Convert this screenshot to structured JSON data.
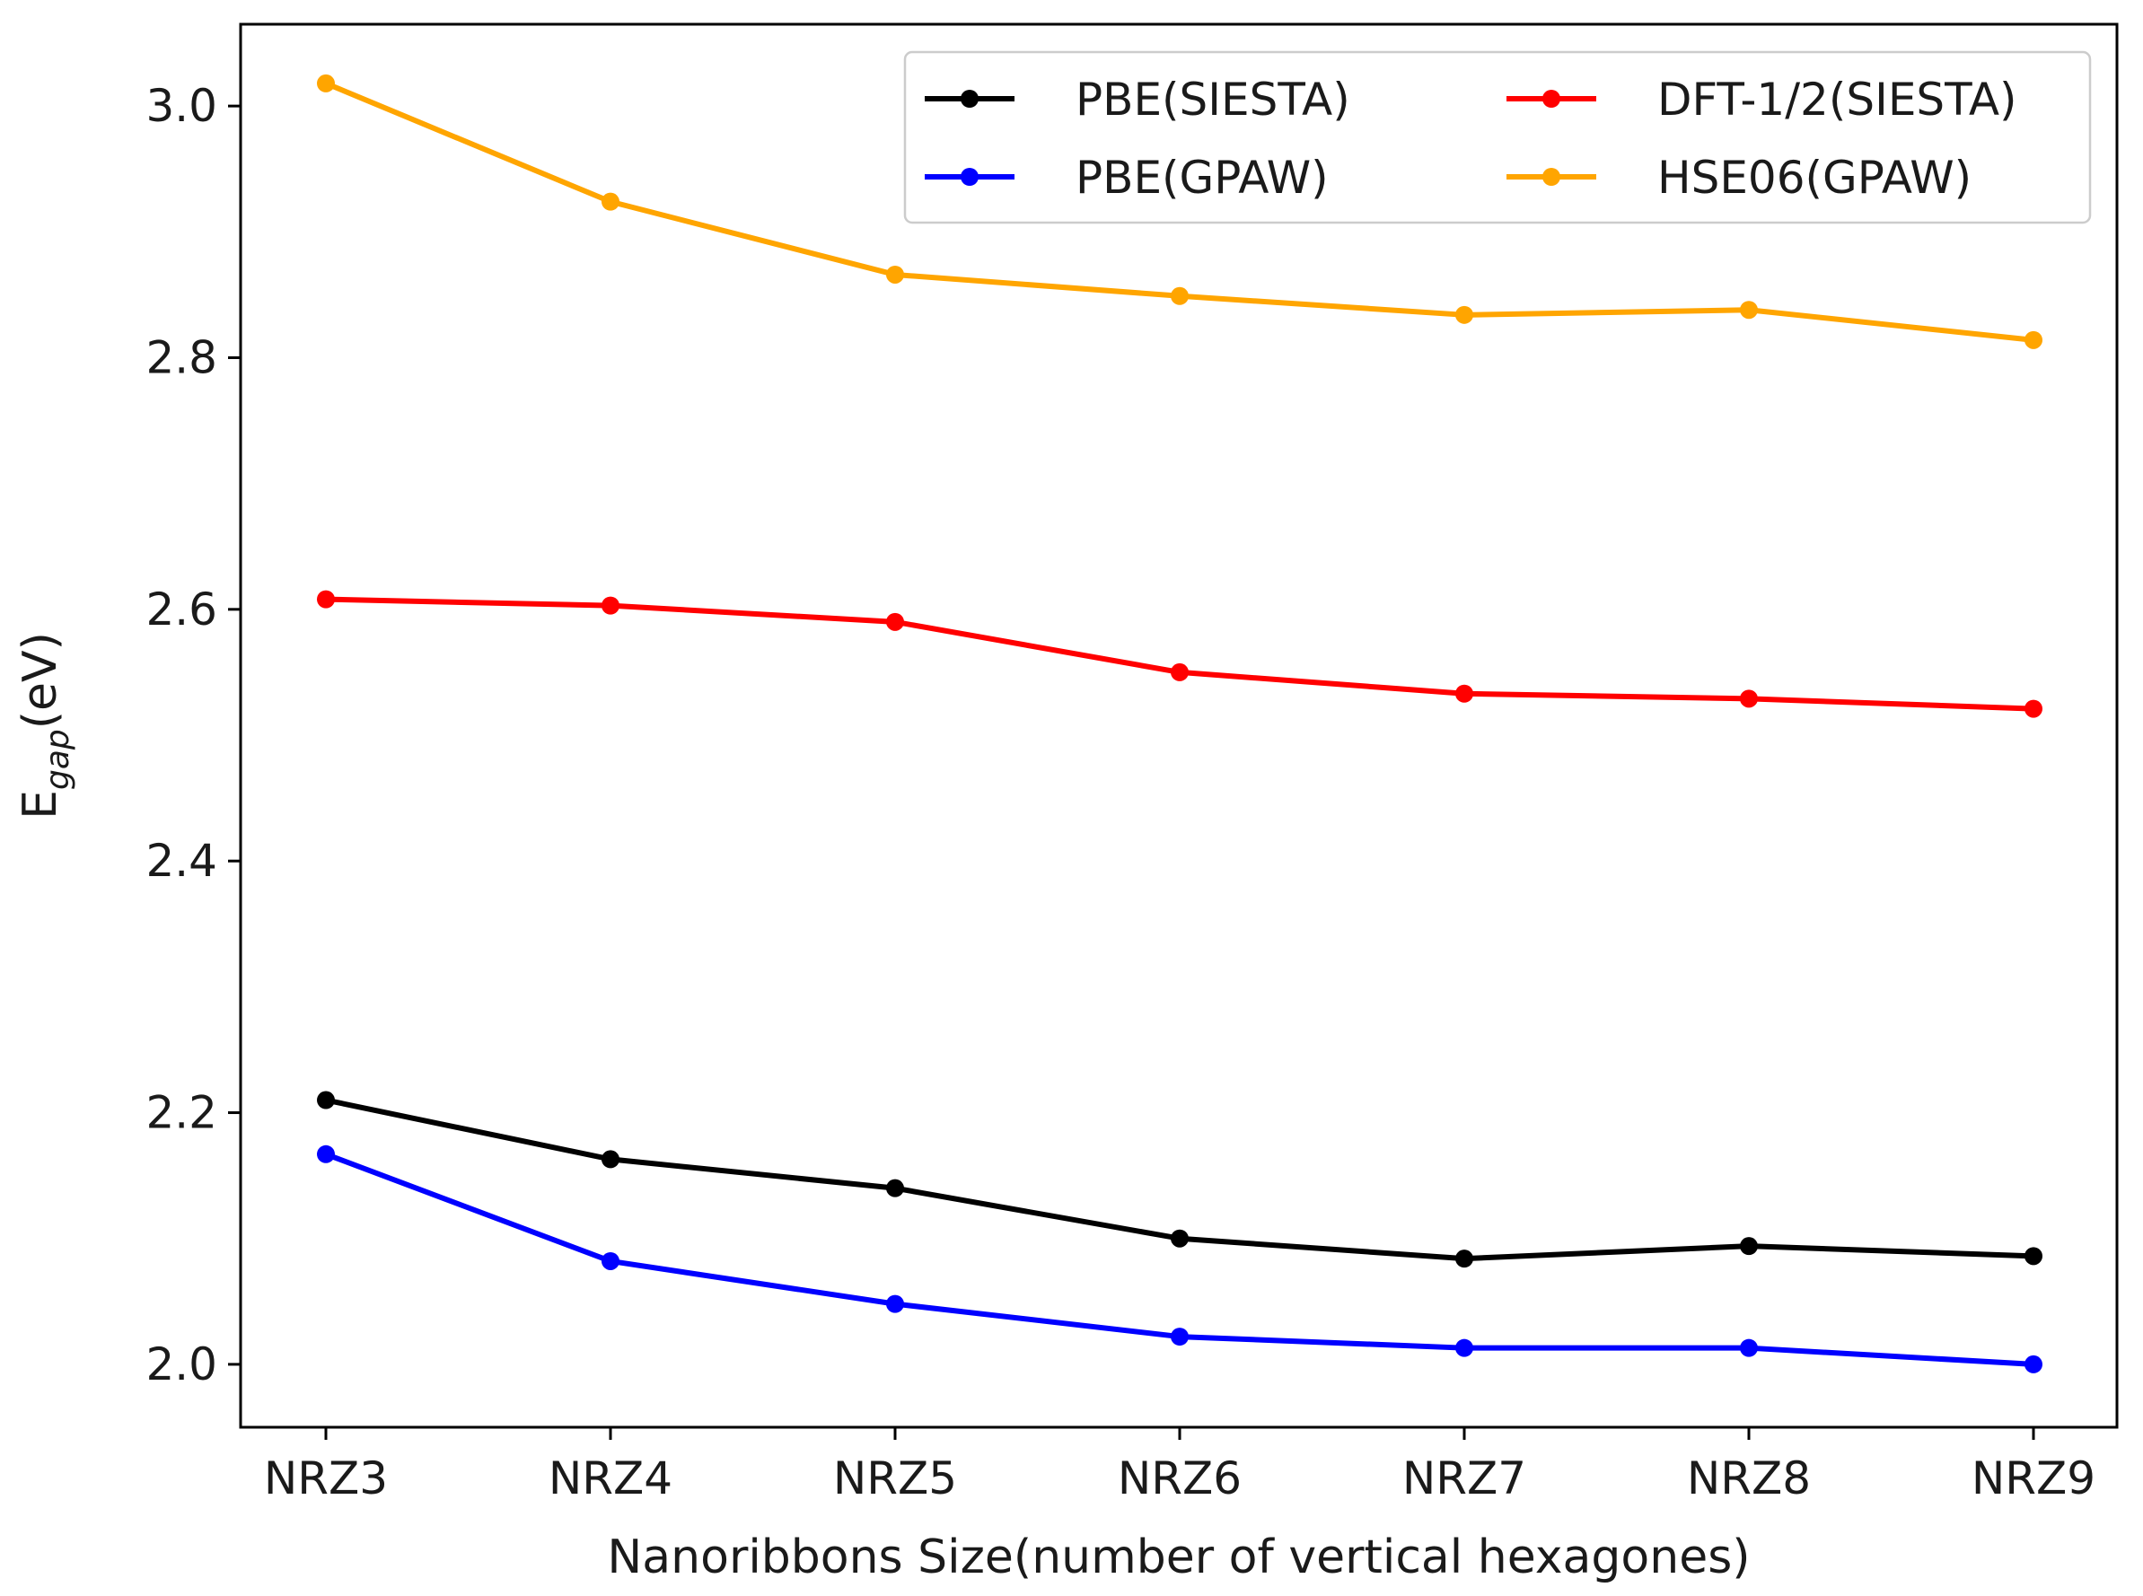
{
  "chart_data": {
    "type": "line",
    "categories": [
      "NRZ3",
      "NRZ4",
      "NRZ5",
      "NRZ6",
      "NRZ7",
      "NRZ8",
      "NRZ9"
    ],
    "series": [
      {
        "name": "PBE(SIESTA)",
        "color": "#000000",
        "values": [
          2.21,
          2.163,
          2.14,
          2.1,
          2.084,
          2.094,
          2.086
        ]
      },
      {
        "name": "DFT-1/2(SIESTA)",
        "color": "#ff0000",
        "values": [
          2.608,
          2.603,
          2.59,
          2.55,
          2.533,
          2.529,
          2.521
        ]
      },
      {
        "name": "PBE(GPAW)",
        "color": "#0000ff",
        "values": [
          2.167,
          2.082,
          2.048,
          2.022,
          2.013,
          2.013,
          2.0
        ]
      },
      {
        "name": "HSE06(GPAW)",
        "color": "#ffa500",
        "values": [
          3.018,
          2.924,
          2.866,
          2.849,
          2.834,
          2.838,
          2.814
        ]
      }
    ],
    "yticks": [
      "2.0",
      "2.2",
      "2.4",
      "2.6",
      "2.8",
      "3.0"
    ],
    "ylim": [
      1.95,
      3.065
    ],
    "xlabel": "Nanoribbons Size(number of vertical hexagones)",
    "ylabel_main": "E",
    "ylabel_sub": "gap",
    "ylabel_unit": "(eV)",
    "title": "",
    "grid": false,
    "legend_position": "top-right"
  }
}
